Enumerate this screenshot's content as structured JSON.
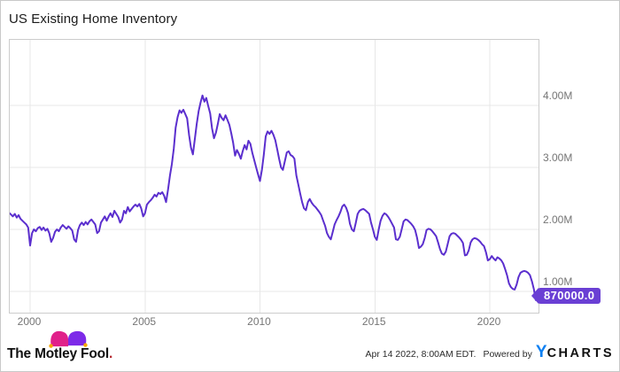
{
  "page": {
    "title": "US Existing Home Inventory"
  },
  "colors": {
    "line": "#5b2fce",
    "value_tag_bg": "#6a3fd4",
    "grid": "#e7e7e7",
    "plot_border": "#cccccc",
    "axis_text": "#757575",
    "ycharts_blue": "#0d80f2",
    "fool_pink": "#e0218a",
    "fool_purple": "#7d2ae8",
    "fool_bell_yellow": "#f7a800"
  },
  "chart_data": {
    "type": "line",
    "title": "US Existing Home Inventory",
    "grid": true,
    "legend": "none",
    "y_axis": {
      "side": "right",
      "tick_labels": [
        "1.00M",
        "2.00M",
        "3.00M",
        "4.00M"
      ],
      "tick_values_millions": [
        1,
        2,
        3,
        4
      ]
    },
    "x_axis": {
      "ticks": [
        2000,
        2005,
        2010,
        2015,
        2020
      ],
      "tick_labels": [
        "2000",
        "2005",
        "2010",
        "2015",
        "2020"
      ],
      "range_decimal_years": [
        1999.08,
        2022.12
      ]
    },
    "last_point": {
      "label": "870000.0",
      "value_millions": 0.87,
      "date": "2022-02"
    },
    "series": [
      {
        "name": "US Existing Home Inventory",
        "color": "#5b2fce",
        "start": "1999-02",
        "start_decimal_year": 1999.0833,
        "frequency": "monthly",
        "values_millions": [
          2.26,
          2.24,
          2.21,
          2.25,
          2.19,
          2.23,
          2.17,
          2.14,
          2.11,
          2.08,
          2.03,
          1.74,
          1.94,
          2.0,
          1.97,
          2.02,
          2.04,
          1.99,
          2.03,
          1.98,
          2.01,
          1.94,
          1.8,
          1.86,
          1.96,
          2.0,
          1.97,
          2.03,
          2.07,
          2.04,
          2.01,
          2.05,
          2.02,
          1.98,
          1.84,
          1.8,
          1.99,
          2.07,
          2.11,
          2.07,
          2.12,
          2.08,
          2.13,
          2.16,
          2.12,
          2.08,
          1.94,
          1.97,
          2.11,
          2.16,
          2.21,
          2.14,
          2.21,
          2.26,
          2.2,
          2.3,
          2.25,
          2.2,
          2.11,
          2.16,
          2.3,
          2.26,
          2.36,
          2.29,
          2.33,
          2.37,
          2.4,
          2.37,
          2.41,
          2.34,
          2.21,
          2.26,
          2.4,
          2.44,
          2.47,
          2.51,
          2.56,
          2.53,
          2.59,
          2.57,
          2.6,
          2.54,
          2.44,
          2.64,
          2.87,
          3.05,
          3.3,
          3.64,
          3.81,
          3.92,
          3.88,
          3.93,
          3.86,
          3.79,
          3.52,
          3.32,
          3.21,
          3.46,
          3.7,
          3.91,
          4.05,
          4.16,
          4.06,
          4.12,
          3.99,
          3.87,
          3.63,
          3.47,
          3.56,
          3.7,
          3.86,
          3.8,
          3.76,
          3.84,
          3.77,
          3.69,
          3.55,
          3.4,
          3.19,
          3.28,
          3.22,
          3.14,
          3.26,
          3.36,
          3.29,
          3.43,
          3.38,
          3.24,
          3.12,
          3.0,
          2.89,
          2.78,
          2.96,
          3.2,
          3.5,
          3.58,
          3.54,
          3.59,
          3.53,
          3.44,
          3.29,
          3.14,
          3.0,
          2.96,
          3.1,
          3.24,
          3.26,
          3.2,
          3.18,
          3.14,
          2.87,
          2.73,
          2.58,
          2.44,
          2.34,
          2.31,
          2.44,
          2.49,
          2.43,
          2.39,
          2.36,
          2.32,
          2.28,
          2.23,
          2.14,
          2.06,
          1.94,
          1.88,
          1.84,
          1.96,
          2.08,
          2.15,
          2.21,
          2.28,
          2.37,
          2.4,
          2.35,
          2.26,
          2.09,
          2.0,
          1.97,
          2.1,
          2.25,
          2.3,
          2.32,
          2.33,
          2.31,
          2.28,
          2.25,
          2.11,
          2.0,
          1.88,
          1.83,
          2.0,
          2.14,
          2.22,
          2.26,
          2.24,
          2.2,
          2.15,
          2.09,
          2.03,
          1.84,
          1.83,
          1.88,
          2.0,
          2.13,
          2.16,
          2.15,
          2.12,
          2.09,
          2.05,
          1.99,
          1.87,
          1.7,
          1.72,
          1.76,
          1.86,
          1.99,
          2.01,
          2.0,
          1.97,
          1.93,
          1.89,
          1.79,
          1.68,
          1.61,
          1.59,
          1.64,
          1.76,
          1.89,
          1.93,
          1.94,
          1.93,
          1.9,
          1.87,
          1.83,
          1.78,
          1.58,
          1.59,
          1.66,
          1.79,
          1.84,
          1.86,
          1.85,
          1.83,
          1.8,
          1.76,
          1.73,
          1.63,
          1.5,
          1.52,
          1.57,
          1.53,
          1.5,
          1.55,
          1.53,
          1.5,
          1.45,
          1.36,
          1.26,
          1.13,
          1.07,
          1.04,
          1.03,
          1.11,
          1.23,
          1.3,
          1.32,
          1.33,
          1.32,
          1.3,
          1.26,
          1.16,
          1.04,
          0.86,
          0.87
        ]
      }
    ]
  },
  "footer": {
    "brand": {
      "text": "The Motley Fool",
      "period": "."
    },
    "timestamp": "Apr 14 2022, 8:00AM EDT.",
    "powered_by": "Powered by",
    "ycharts": {
      "y": "Y",
      "rest": "CHARTS"
    }
  }
}
